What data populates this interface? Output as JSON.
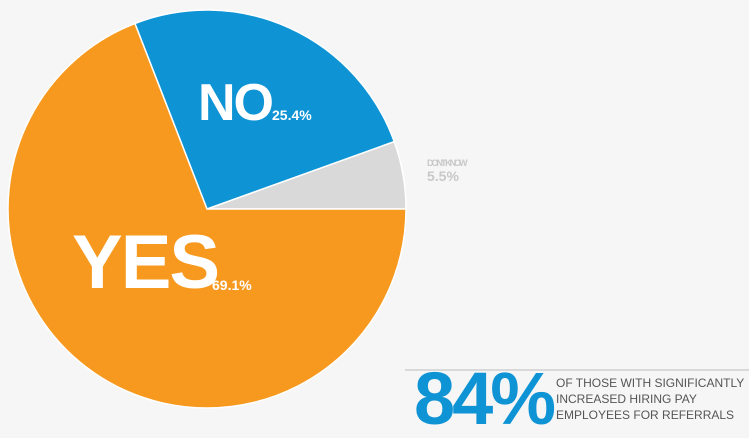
{
  "chart_data": {
    "type": "pie",
    "categories": [
      "DON'T KNOW",
      "NO",
      "YES"
    ],
    "values": [
      5.5,
      25.4,
      69.1
    ],
    "value_labels": [
      "5.5%",
      "25.4%",
      "69.1%"
    ],
    "colors": [
      "#d9d9da",
      "#0e93d4",
      "#f7991f"
    ]
  },
  "callout": {
    "figure": "84%",
    "lines": [
      "OF THOSE WITH SIGNIFICANTLY",
      "INCREASED HIRING PAY",
      "EMPLOYEES FOR REFERRALS"
    ]
  }
}
